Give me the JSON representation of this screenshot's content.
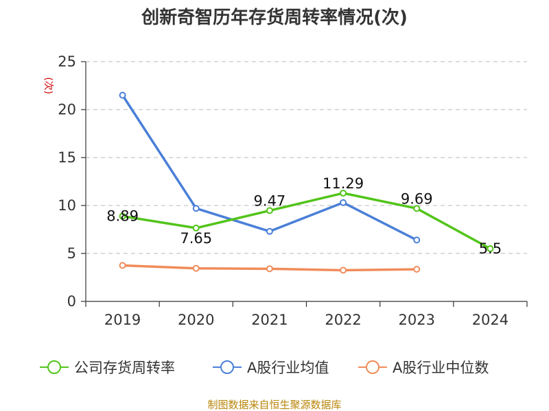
{
  "chart_data": {
    "type": "line",
    "title": "创新奇智历年存货周转率情况(次)",
    "ylabel": "(次)",
    "xlabel": "",
    "categories": [
      "2019",
      "2020",
      "2021",
      "2022",
      "2023",
      "2024"
    ],
    "ylim": [
      0,
      25
    ],
    "yticks": [
      0,
      5,
      10,
      15,
      20,
      25
    ],
    "grid": true,
    "legend_position": "bottom",
    "series": [
      {
        "name": "公司存货周转率",
        "color": "#52c41a",
        "values": [
          8.89,
          7.65,
          9.47,
          11.29,
          9.69,
          5.5
        ],
        "labels": [
          "8.89",
          "7.65",
          "9.47",
          "11.29",
          "9.69",
          "5.5"
        ]
      },
      {
        "name": "A股行业均值",
        "color": "#4a7fd8",
        "values": [
          21.5,
          9.7,
          7.3,
          10.3,
          6.4,
          null
        ]
      },
      {
        "name": "A股行业中位数",
        "color": "#f08c5a",
        "values": [
          3.75,
          3.45,
          3.4,
          3.25,
          3.35,
          null
        ]
      }
    ]
  },
  "source_text": "制图数据来自恒生聚源数据库"
}
